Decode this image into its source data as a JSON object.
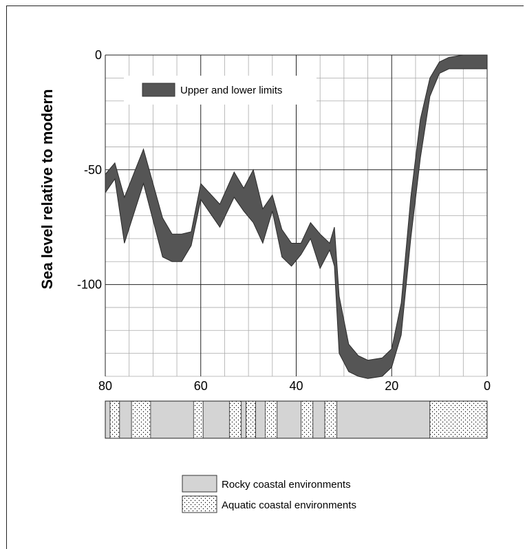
{
  "chart_data": {
    "type": "area",
    "title": "",
    "xlabel": "",
    "ylabel": "Sea level relative to modern",
    "x_reversed": true,
    "xlim": [
      80,
      0
    ],
    "ylim": [
      -140,
      0
    ],
    "x_ticks": [
      "80",
      "60",
      "40",
      "20",
      "0"
    ],
    "y_ticks": [
      "0",
      "-50",
      "-100"
    ],
    "grid": true,
    "legend_position": "top-left",
    "series": [
      {
        "name": "Upper and lower limits",
        "color": "#555555",
        "x": [
          80,
          78,
          76,
          72,
          68,
          66,
          64,
          62,
          60,
          56,
          53,
          51,
          49,
          47,
          45,
          43,
          41,
          39,
          37,
          35,
          33,
          32,
          31,
          29,
          27,
          25,
          22,
          20,
          18,
          16,
          14,
          12,
          10,
          8,
          5,
          0
        ],
        "upper": [
          -52,
          -47,
          -62,
          -41,
          -71,
          -78,
          -78,
          -77,
          -56,
          -65,
          -51,
          -58,
          -50,
          -67,
          -61,
          -76,
          -82,
          -82,
          -73,
          -78,
          -82,
          -75,
          -105,
          -126,
          -131,
          -133,
          -132,
          -128,
          -108,
          -62,
          -28,
          -10,
          -3,
          -1,
          0,
          0
        ],
        "lower": [
          -60,
          -54,
          -82,
          -56,
          -88,
          -90,
          -90,
          -83,
          -63,
          -75,
          -62,
          -68,
          -73,
          -82,
          -68,
          -88,
          -92,
          -87,
          -80,
          -93,
          -85,
          -92,
          -130,
          -138,
          -140,
          -141,
          -140,
          -136,
          -122,
          -80,
          -45,
          -18,
          -8,
          -6,
          -6,
          -6
        ]
      }
    ],
    "environment_strip": [
      {
        "from": 80,
        "to": 79,
        "type": "rocky"
      },
      {
        "from": 79,
        "to": 77,
        "type": "aquatic"
      },
      {
        "from": 77,
        "to": 74.5,
        "type": "rocky"
      },
      {
        "from": 74.5,
        "to": 70.5,
        "type": "aquatic"
      },
      {
        "from": 70.5,
        "to": 61.5,
        "type": "rocky"
      },
      {
        "from": 61.5,
        "to": 59.5,
        "type": "aquatic"
      },
      {
        "from": 59.5,
        "to": 54,
        "type": "rocky"
      },
      {
        "from": 54,
        "to": 51.5,
        "type": "aquatic"
      },
      {
        "from": 51.5,
        "to": 50.5,
        "type": "rocky"
      },
      {
        "from": 50.5,
        "to": 48.5,
        "type": "aquatic"
      },
      {
        "from": 48.5,
        "to": 46.5,
        "type": "rocky"
      },
      {
        "from": 46.5,
        "to": 44,
        "type": "aquatic"
      },
      {
        "from": 44,
        "to": 39,
        "type": "rocky"
      },
      {
        "from": 39,
        "to": 36.5,
        "type": "aquatic"
      },
      {
        "from": 36.5,
        "to": 34,
        "type": "rocky"
      },
      {
        "from": 34,
        "to": 31.5,
        "type": "aquatic"
      },
      {
        "from": 31.5,
        "to": 12,
        "type": "rocky"
      },
      {
        "from": 12,
        "to": 0,
        "type": "aquatic"
      }
    ],
    "environment_legend": [
      {
        "type": "rocky",
        "label": "Rocky coastal environments"
      },
      {
        "type": "aquatic",
        "label": "Aquatic coastal environments"
      }
    ]
  }
}
